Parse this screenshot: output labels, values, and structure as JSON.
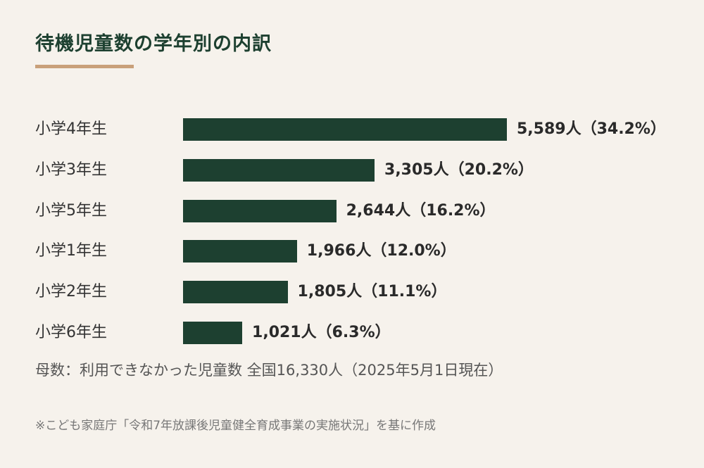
{
  "title": "待機児童数の学年別の内訳",
  "chart_data": {
    "type": "bar",
    "orientation": "horizontal",
    "categories": [
      "小学4年生",
      "小学3年生",
      "小学5年生",
      "小学1年生",
      "小学2年生",
      "小学6年生"
    ],
    "values": [
      5589,
      3305,
      2644,
      1966,
      1805,
      1021
    ],
    "value_labels": [
      "5,589人（34.2%）",
      "3,305人（20.2%）",
      "2,644人（16.2%）",
      "1,966人（12.0%）",
      "1,805人（11.1%）",
      "1,021人（6.3%）"
    ],
    "percentages": [
      34.2,
      20.2,
      16.2,
      12.0,
      11.1,
      6.3
    ],
    "xlim": [
      0,
      5589
    ],
    "grid": false,
    "bar_color": "#1d4030"
  },
  "note": "母数：利用できなかった児童数 全国16,330人（2025年5月1日現在）",
  "source": "※こども家庭庁「令和7年放課後児童健全育成事業の実施状況」を基に作成",
  "colors": {
    "background": "#f6f2ec",
    "title": "#1d4030",
    "accent_underline": "#c9a07a"
  }
}
